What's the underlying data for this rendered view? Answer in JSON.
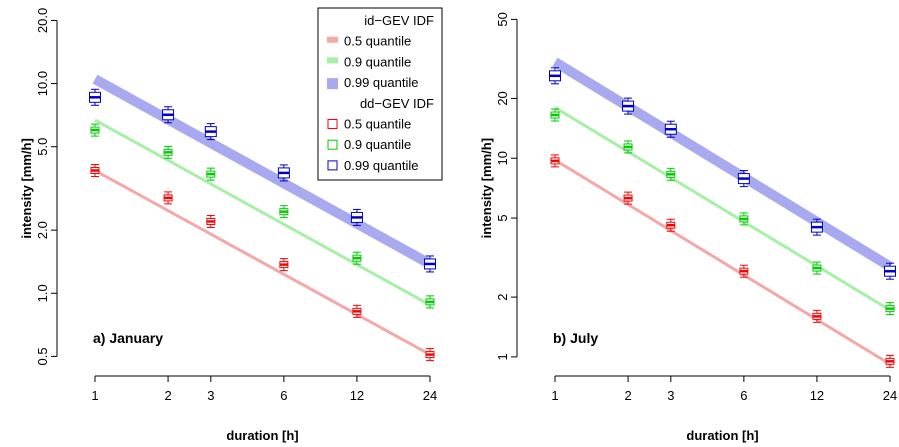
{
  "chart_data": [
    {
      "type": "line",
      "panel_label": "a) January",
      "xlabel": "duration [h]",
      "ylabel": "intensity [mm/h]",
      "x_scale": "log",
      "y_scale": "log",
      "x_ticks": [
        1,
        2,
        3,
        6,
        12,
        24
      ],
      "x_tick_labels": [
        "1",
        "2",
        "3",
        "6",
        "12",
        "24"
      ],
      "y_ticks": [
        0.5,
        1.0,
        2.0,
        5.0,
        10.0,
        20.0
      ],
      "y_tick_labels": [
        "0.5",
        "1.0",
        "2.0",
        "5.0",
        "10.0",
        "20.0"
      ],
      "xlim": [
        0.92,
        26
      ],
      "ylim": [
        0.45,
        21
      ],
      "legend": {
        "placement": "top-right",
        "group_titles": [
          "id−GEV IDF",
          "dd−GEV IDF"
        ],
        "entries": [
          "0.5 quantile",
          "0.9 quantile",
          "0.99 quantile"
        ]
      },
      "series": [
        {
          "name": "0.5 quantile",
          "color": "#ff0000",
          "line_color": "#f6a8a8",
          "idf_line": {
            "x": [
              1,
              24
            ],
            "y": [
              3.85,
              0.51
            ]
          },
          "box_medians": [
            3.85,
            2.85,
            2.2,
            1.37,
            0.82,
            0.51
          ]
        },
        {
          "name": "0.9 quantile",
          "color": "#00cc00",
          "line_color": "#a6f0a6",
          "idf_line": {
            "x": [
              1,
              24
            ],
            "y": [
              6.7,
              0.88
            ]
          },
          "box_medians": [
            6.0,
            4.7,
            3.7,
            2.45,
            1.47,
            0.91
          ]
        },
        {
          "name": "0.99 quantile",
          "color": "#0000cc",
          "line_color": "#a9a9f0",
          "idf_line": {
            "x": [
              1,
              24
            ],
            "y": [
              10.5,
              1.38
            ]
          },
          "box_medians": [
            8.6,
            7.1,
            5.9,
            3.75,
            2.3,
            1.38
          ]
        }
      ]
    },
    {
      "type": "line",
      "panel_label": "b) July",
      "xlabel": "duration [h]",
      "ylabel": "intensity [mm/h]",
      "x_scale": "log",
      "y_scale": "log",
      "x_ticks": [
        1,
        2,
        3,
        6,
        12,
        24
      ],
      "x_tick_labels": [
        "1",
        "2",
        "3",
        "6",
        "12",
        "24"
      ],
      "y_ticks": [
        1,
        2,
        5,
        10,
        20,
        50
      ],
      "y_tick_labels": [
        "1",
        "2",
        "5",
        "10",
        "20",
        "50"
      ],
      "xlim": [
        0.92,
        26
      ],
      "ylim": [
        0.9,
        52
      ],
      "series": [
        {
          "name": "0.5 quantile",
          "color": "#ff0000",
          "line_color": "#f6a8a8",
          "idf_line": {
            "x": [
              1,
              24
            ],
            "y": [
              9.8,
              0.92
            ]
          },
          "box_medians": [
            9.7,
            6.3,
            4.6,
            2.7,
            1.6,
            0.95
          ]
        },
        {
          "name": "0.9 quantile",
          "color": "#00cc00",
          "line_color": "#a6f0a6",
          "idf_line": {
            "x": [
              1,
              24
            ],
            "y": [
              18.0,
              1.72
            ]
          },
          "box_medians": [
            16.5,
            11.4,
            8.3,
            4.95,
            2.8,
            1.75
          ]
        },
        {
          "name": "0.99 quantile",
          "color": "#0000cc",
          "line_color": "#a9a9f0",
          "idf_line": {
            "x": [
              1,
              24
            ],
            "y": [
              30.5,
              2.85
            ]
          },
          "box_medians": [
            26.0,
            18.3,
            14.0,
            7.9,
            4.5,
            2.7
          ]
        }
      ]
    }
  ]
}
